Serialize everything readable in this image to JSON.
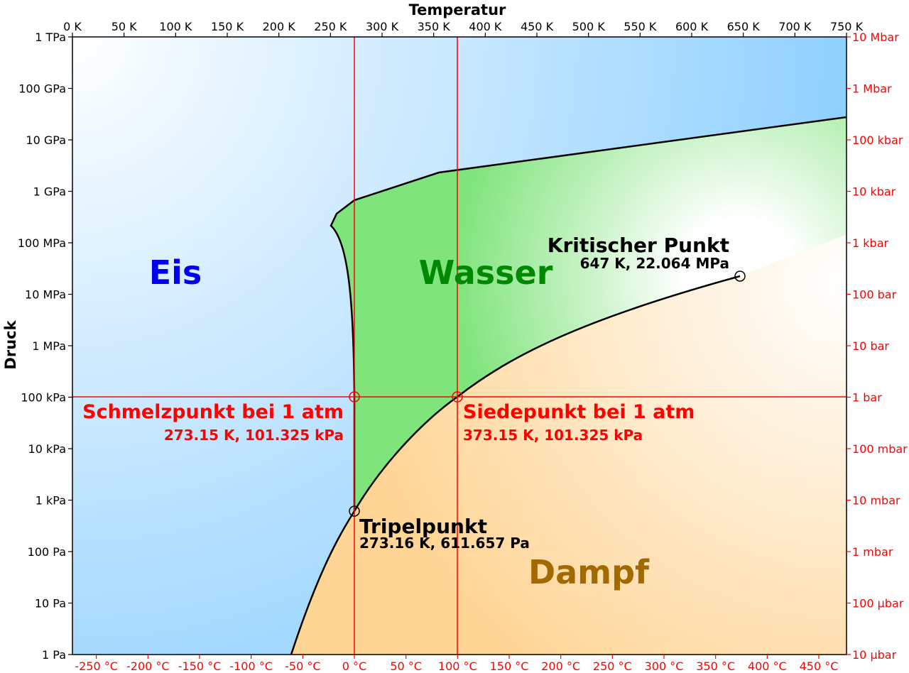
{
  "axes": {
    "top_title": "Temperatur",
    "left_title": "Druck",
    "top_ticks": [
      "0 K",
      "50 K",
      "100 K",
      "150 K",
      "200 K",
      "250 K",
      "300 K",
      "350 K",
      "400 K",
      "450 K",
      "500 K",
      "550 K",
      "600 K",
      "650 K",
      "700 K",
      "750 K"
    ],
    "bottom_ticks": [
      "-250 °C",
      "-200 °C",
      "-150 °C",
      "-100 °C",
      "-50 °C",
      "0 °C",
      "50 °C",
      "100 °C",
      "150 °C",
      "200 °C",
      "250 °C",
      "300 °C",
      "350 °C",
      "400 °C",
      "450 °C"
    ],
    "left_ticks": [
      "1 TPa",
      "100 GPa",
      "10 GPa",
      "1 GPa",
      "100 MPa",
      "10 MPa",
      "1 MPa",
      "100 kPa",
      "10 kPa",
      "1 kPa",
      "100 Pa",
      "10 Pa",
      "1 Pa"
    ],
    "right_ticks": [
      "10 Mbar",
      "1 Mbar",
      "100 kbar",
      "10 kbar",
      "1 kbar",
      "100 bar",
      "10 bar",
      "1 bar",
      "100 mbar",
      "10 mbar",
      "1 mbar",
      "100 µbar",
      "10 µbar"
    ]
  },
  "regions": {
    "ice": "Eis",
    "water": "Wasser",
    "vapor": "Dampf"
  },
  "points": {
    "critical": {
      "title": "Kritischer Punkt",
      "value": "647 K, 22.064 MPa"
    },
    "melting": {
      "title": "Schmelzpunkt bei 1 atm",
      "value": "273.15 K, 101.325 kPa"
    },
    "boiling": {
      "title": "Siedepunkt bei 1 atm",
      "value": "373.15 K, 101.325 kPa"
    },
    "triple": {
      "title": "Tripelpunkt",
      "value": "273.16 K, 611.657 Pa"
    }
  },
  "colors": {
    "ice_label": "#0000ee",
    "water_label": "#008800",
    "vapor_label": "#a06a00",
    "marker_red": "#ff0000"
  }
}
